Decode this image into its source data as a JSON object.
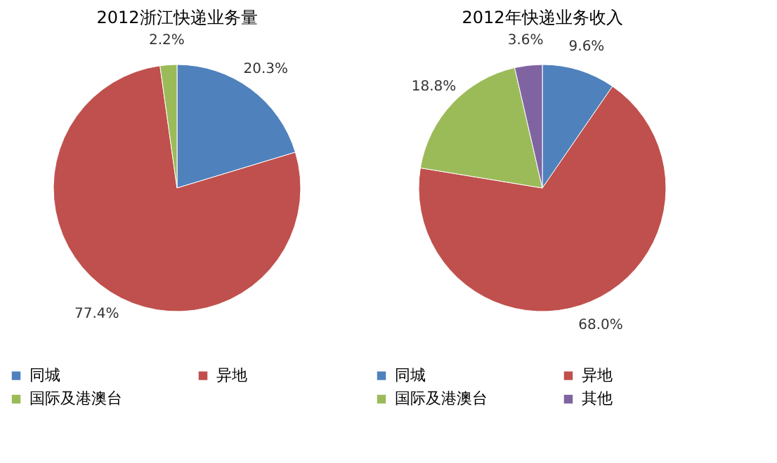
{
  "chart_data": [
    {
      "type": "pie",
      "title": "2012浙江快递业务量",
      "categories": [
        "同城",
        "异地",
        "国际及港澳台"
      ],
      "values": [
        20.3,
        77.4,
        2.2
      ],
      "colors": [
        "#4f81bd",
        "#c0504d",
        "#9bbb59"
      ],
      "value_labels": [
        "20.3%",
        "77.4%",
        "2.2%"
      ],
      "legend": "bottom"
    },
    {
      "type": "pie",
      "title": "2012年快递业务收入",
      "categories": [
        "同城",
        "异地",
        "国际及港澳台",
        "其他"
      ],
      "values": [
        9.6,
        68.0,
        18.8,
        3.6
      ],
      "colors": [
        "#4f81bd",
        "#c0504d",
        "#9bbb59",
        "#8064a2"
      ],
      "value_labels": [
        "9.6%",
        "68.0%",
        "18.8%",
        "3.6%"
      ],
      "legend": "bottom"
    }
  ]
}
